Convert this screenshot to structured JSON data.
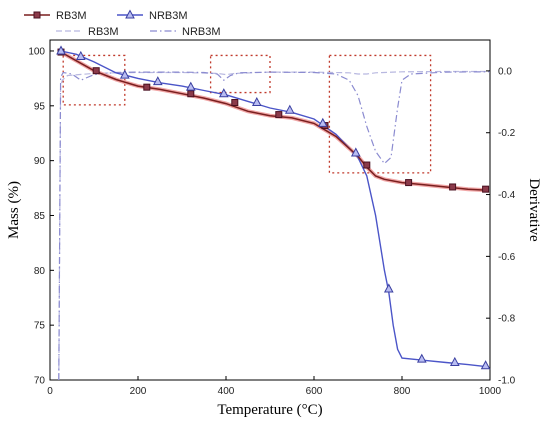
{
  "chart_data": {
    "type": "line",
    "xlabel": "Temperature (°C)",
    "ylabel_left": "Mass (%)",
    "ylabel_right": "Derivative",
    "xlim": [
      0,
      1000
    ],
    "ylim_left": [
      70,
      101
    ],
    "ylim_right": [
      -1.0,
      0.1
    ],
    "xticks": [
      0,
      200,
      400,
      600,
      800,
      1000
    ],
    "yticks_left": [
      70,
      75,
      80,
      85,
      90,
      95,
      100
    ],
    "yticks_right": [
      0.0,
      -0.2,
      -0.4,
      -0.6,
      -0.8,
      -1.0
    ],
    "ytick_labels_right": [
      "0.0",
      "-0.2",
      "-0.4",
      "-0.6",
      "-0.8",
      "-1.0"
    ],
    "grid": false,
    "legend": {
      "placement": "top-left",
      "columns": 2
    },
    "colors": {
      "RB3M_mass": "#7a1f1f",
      "RB3M_mass_glow": "#f1a7a7",
      "NRB3M_mass": "#4b55c8",
      "RB3M_deriv": "#b8b8e0",
      "NRB3M_deriv": "#8b8bd0",
      "box": "#c0392b"
    },
    "series": [
      {
        "name": "RB3M",
        "axis": "left",
        "style": "solid",
        "marker": "square",
        "x": [
          25,
          60,
          100,
          150,
          200,
          250,
          300,
          350,
          400,
          450,
          500,
          550,
          600,
          650,
          700,
          720,
          740,
          760,
          800,
          850,
          900,
          950,
          995
        ],
        "y": [
          99.9,
          99.1,
          98.2,
          97.4,
          96.8,
          96.5,
          96.1,
          95.7,
          95.2,
          94.5,
          94.1,
          93.9,
          93.4,
          92.2,
          90.4,
          89.4,
          88.6,
          88.3,
          88.0,
          87.8,
          87.6,
          87.4,
          87.3
        ]
      },
      {
        "name": "RB3M",
        "axis": "left",
        "style": "markers",
        "marker": "square",
        "x": [
          25,
          105,
          220,
          320,
          420,
          520,
          625,
          720,
          815,
          915,
          990
        ],
        "y": [
          99.9,
          98.2,
          96.7,
          96.1,
          95.3,
          94.2,
          93.2,
          89.6,
          88.0,
          87.6,
          87.4
        ]
      },
      {
        "name": "NRB3M",
        "axis": "left",
        "style": "solid",
        "marker": "triangle",
        "x": [
          25,
          60,
          100,
          150,
          200,
          250,
          300,
          350,
          400,
          450,
          500,
          550,
          600,
          650,
          700,
          720,
          740,
          760,
          770,
          780,
          790,
          800,
          850,
          900,
          950,
          995
        ],
        "y": [
          100.0,
          99.7,
          99.0,
          98.0,
          97.5,
          97.1,
          96.8,
          96.4,
          96.0,
          95.4,
          94.8,
          94.4,
          93.8,
          92.4,
          90.3,
          88.6,
          85.0,
          80.0,
          78.0,
          75.0,
          72.8,
          72.0,
          71.8,
          71.6,
          71.4,
          71.2
        ]
      },
      {
        "name": "NRB3M",
        "axis": "left",
        "style": "markers",
        "marker": "triangle",
        "x": [
          25,
          70,
          170,
          245,
          320,
          395,
          470,
          545,
          620,
          695,
          770,
          845,
          920,
          990
        ],
        "y": [
          100.0,
          99.5,
          97.8,
          97.2,
          96.7,
          96.1,
          95.3,
          94.6,
          93.4,
          90.7,
          78.3,
          71.9,
          71.6,
          71.3
        ]
      },
      {
        "name": "RB3M",
        "axis": "right",
        "style": "dashed",
        "x": [
          20,
          24,
          28,
          40,
          100,
          150,
          200,
          300,
          380,
          400,
          420,
          500,
          600,
          680,
          700,
          720,
          740,
          800,
          900,
          1000
        ],
        "y": [
          -1.0,
          -0.05,
          -0.03,
          -0.015,
          -0.008,
          -0.006,
          -0.005,
          -0.005,
          -0.008,
          -0.012,
          -0.008,
          -0.004,
          -0.004,
          -0.006,
          -0.01,
          -0.01,
          -0.006,
          -0.003,
          -0.002,
          -0.002
        ]
      },
      {
        "name": "NRB3M",
        "axis": "right",
        "style": "dashdot",
        "x": [
          20,
          24,
          30,
          50,
          70,
          100,
          150,
          200,
          300,
          350,
          380,
          395,
          410,
          430,
          500,
          600,
          650,
          680,
          700,
          720,
          740,
          760,
          775,
          790,
          800,
          820,
          900,
          1000
        ],
        "y": [
          -1.0,
          -0.02,
          -0.005,
          -0.01,
          -0.03,
          -0.012,
          -0.005,
          -0.004,
          -0.004,
          -0.005,
          -0.01,
          -0.03,
          -0.015,
          -0.006,
          -0.004,
          -0.005,
          -0.01,
          -0.03,
          -0.08,
          -0.18,
          -0.26,
          -0.3,
          -0.28,
          -0.12,
          -0.03,
          -0.01,
          -0.004,
          -0.003
        ]
      }
    ],
    "annotations": [
      {
        "type": "dotted-box",
        "x": [
          30,
          170
        ],
        "y_right": [
          -0.11,
          0.05
        ]
      },
      {
        "type": "dotted-box",
        "x": [
          365,
          500
        ],
        "y_right": [
          -0.07,
          0.05
        ]
      },
      {
        "type": "dotted-box",
        "x": [
          635,
          865
        ],
        "y_right": [
          -0.33,
          0.05
        ]
      }
    ]
  }
}
